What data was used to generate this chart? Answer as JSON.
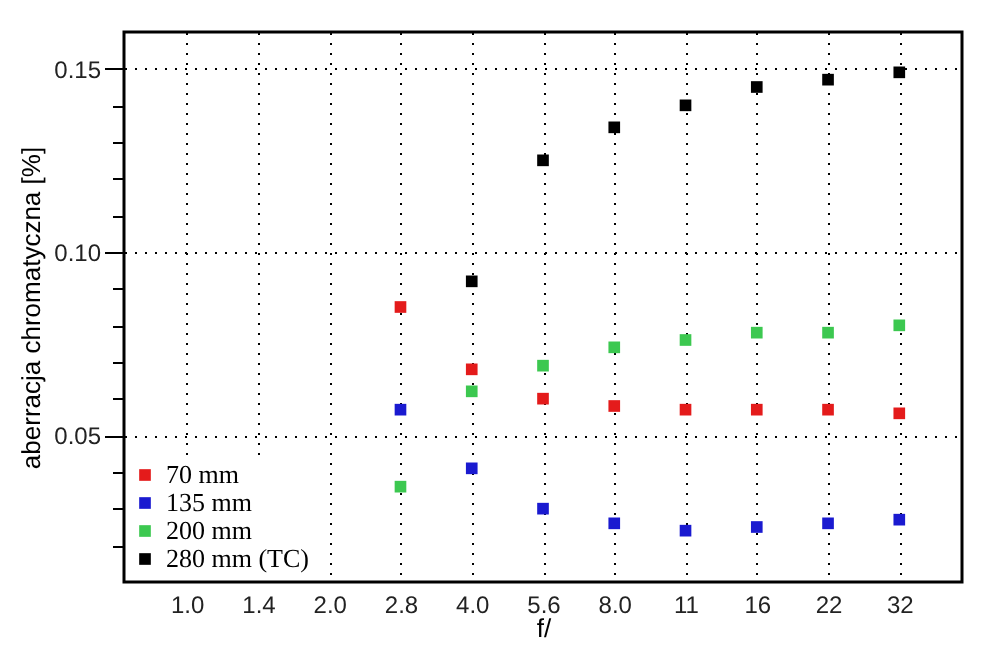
{
  "chart_data": {
    "type": "scatter",
    "xlabel": "f/",
    "ylabel": "aberracja chromatyczna [%]",
    "categories": [
      "1.0",
      "1.4",
      "2.0",
      "2.8",
      "4.0",
      "5.6",
      "8.0",
      "11",
      "16",
      "22",
      "32"
    ],
    "series": [
      {
        "name": "70 mm",
        "color": "#e41b1b",
        "values": [
          null,
          null,
          null,
          0.085,
          0.068,
          0.06,
          0.058,
          0.057,
          0.057,
          0.057,
          0.056
        ]
      },
      {
        "name": "135 mm",
        "color": "#1a1ad0",
        "values": [
          null,
          null,
          null,
          0.057,
          0.041,
          0.03,
          0.026,
          0.024,
          0.025,
          0.026,
          0.027
        ]
      },
      {
        "name": "200 mm",
        "color": "#3cc850",
        "values": [
          null,
          null,
          null,
          0.036,
          0.062,
          0.069,
          0.074,
          0.076,
          0.078,
          0.078,
          0.08
        ]
      },
      {
        "name": "280 mm (TC)",
        "color": "#000000",
        "values": [
          null,
          null,
          null,
          null,
          0.092,
          0.125,
          0.134,
          0.14,
          0.145,
          0.147,
          0.149
        ]
      }
    ],
    "ylim": [
      0.01,
      0.16
    ],
    "yticks": [
      {
        "value": 0.02,
        "label": null
      },
      {
        "value": 0.03,
        "label": null
      },
      {
        "value": 0.04,
        "label": null
      },
      {
        "value": 0.05,
        "label": "0.05"
      },
      {
        "value": 0.06,
        "label": null
      },
      {
        "value": 0.07,
        "label": null
      },
      {
        "value": 0.08,
        "label": null
      },
      {
        "value": 0.09,
        "label": null
      },
      {
        "value": 0.1,
        "label": "0.10"
      },
      {
        "value": 0.11,
        "label": null
      },
      {
        "value": 0.12,
        "label": null
      },
      {
        "value": 0.13,
        "label": null
      },
      {
        "value": 0.14,
        "label": null
      },
      {
        "value": 0.15,
        "label": "0.15"
      }
    ],
    "grid": true,
    "legend": "bottom left",
    "marker": "square"
  }
}
